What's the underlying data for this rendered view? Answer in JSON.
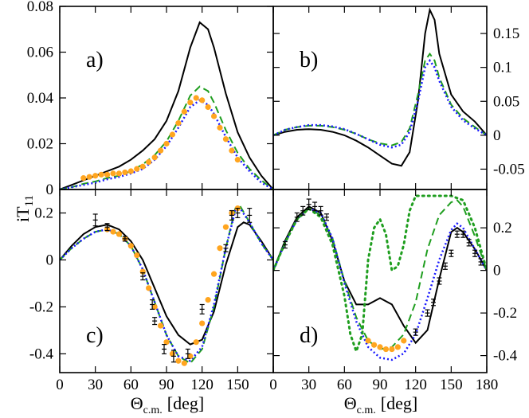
{
  "figure": {
    "ylabel_main": "iT",
    "ylabel_sub": "11",
    "xlabel_main": "Θ",
    "xlabel_sub": "c.m.",
    "xlabel_unit": "[deg]"
  },
  "colors": {
    "black": "#000000",
    "green": "#1f9e1f",
    "blue": "#1a1aff",
    "orange": "#ffa51f"
  },
  "chart_data": [
    {
      "type": "line",
      "label": "a)",
      "xlim": [
        0,
        180
      ],
      "ylim": [
        0,
        0.08
      ],
      "yticks": [
        "0",
        "0.02",
        "0.04",
        "0.06",
        "0.08"
      ],
      "series": [
        {
          "style": "black-solid",
          "x": [
            0,
            10,
            20,
            30,
            40,
            50,
            60,
            70,
            80,
            90,
            100,
            110,
            118,
            125,
            130,
            140,
            150,
            160,
            170,
            180
          ],
          "y": [
            0,
            0.002,
            0.004,
            0.006,
            0.008,
            0.01,
            0.013,
            0.017,
            0.022,
            0.03,
            0.043,
            0.062,
            0.073,
            0.07,
            0.062,
            0.042,
            0.025,
            0.014,
            0.006,
            0
          ]
        },
        {
          "style": "green-dash",
          "x": [
            0,
            10,
            20,
            30,
            40,
            50,
            60,
            70,
            80,
            90,
            100,
            110,
            118,
            125,
            130,
            140,
            150,
            160,
            170,
            180
          ],
          "y": [
            0,
            0.001,
            0.0025,
            0.0035,
            0.005,
            0.006,
            0.008,
            0.011,
            0.015,
            0.021,
            0.03,
            0.041,
            0.045,
            0.043,
            0.038,
            0.026,
            0.016,
            0.009,
            0.004,
            0
          ]
        },
        {
          "style": "blue-dots",
          "x": [
            0,
            10,
            20,
            30,
            40,
            50,
            60,
            70,
            80,
            90,
            100,
            110,
            118,
            125,
            130,
            140,
            150,
            160,
            170,
            180
          ],
          "y": [
            0,
            0.001,
            0.002,
            0.003,
            0.0045,
            0.0055,
            0.007,
            0.009,
            0.013,
            0.019,
            0.027,
            0.036,
            0.039,
            0.037,
            0.033,
            0.023,
            0.014,
            0.008,
            0.003,
            0
          ]
        },
        {
          "style": "orange-dots",
          "x": [
            20,
            25,
            30,
            35,
            40,
            45,
            50,
            55,
            60,
            65,
            70,
            75,
            80,
            85,
            90,
            95,
            100,
            105,
            110,
            115,
            120,
            125,
            130,
            135,
            140,
            145,
            150
          ],
          "y": [
            0.005,
            0.0055,
            0.006,
            0.0065,
            0.0065,
            0.007,
            0.007,
            0.0075,
            0.008,
            0.009,
            0.01,
            0.012,
            0.014,
            0.017,
            0.02,
            0.024,
            0.029,
            0.034,
            0.038,
            0.04,
            0.039,
            0.036,
            0.032,
            0.027,
            0.022,
            0.017,
            0.013
          ]
        }
      ]
    },
    {
      "type": "line",
      "label": "b)",
      "xlim": [
        0,
        180
      ],
      "ylim": [
        -0.08,
        0.19
      ],
      "yticks": [
        "-0.05",
        "0",
        "0.05",
        "0.1",
        "0.15"
      ],
      "yvalues": [
        -0.05,
        0,
        0.05,
        0.1,
        0.15
      ],
      "series": [
        {
          "style": "black-solid",
          "x": [
            0,
            10,
            20,
            30,
            40,
            50,
            60,
            70,
            80,
            90,
            100,
            108,
            115,
            122,
            128,
            132,
            136,
            140,
            150,
            160,
            170,
            180
          ],
          "y": [
            0,
            0.005,
            0.008,
            0.009,
            0.008,
            0.005,
            0,
            -0.008,
            -0.018,
            -0.03,
            -0.042,
            -0.045,
            -0.025,
            0.05,
            0.15,
            0.185,
            0.17,
            0.12,
            0.06,
            0.035,
            0.02,
            0
          ]
        },
        {
          "style": "green-dash",
          "x": [
            0,
            10,
            20,
            30,
            40,
            50,
            60,
            70,
            80,
            90,
            100,
            108,
            115,
            122,
            128,
            132,
            136,
            140,
            150,
            160,
            170,
            180
          ],
          "y": [
            0,
            0.008,
            0.012,
            0.014,
            0.014,
            0.012,
            0.008,
            0.002,
            -0.006,
            -0.012,
            -0.015,
            -0.01,
            0.01,
            0.06,
            0.11,
            0.12,
            0.11,
            0.085,
            0.045,
            0.025,
            0.012,
            0
          ]
        },
        {
          "style": "blue-dots",
          "x": [
            0,
            10,
            20,
            30,
            40,
            50,
            60,
            70,
            80,
            90,
            100,
            108,
            115,
            122,
            128,
            132,
            136,
            140,
            150,
            160,
            170,
            180
          ],
          "y": [
            0,
            0.008,
            0.012,
            0.015,
            0.015,
            0.013,
            0.009,
            0.002,
            -0.006,
            -0.014,
            -0.018,
            -0.014,
            0.005,
            0.05,
            0.1,
            0.11,
            0.1,
            0.08,
            0.042,
            0.022,
            0.01,
            0
          ]
        }
      ]
    },
    {
      "type": "line",
      "label": "c)",
      "xlim": [
        0,
        180
      ],
      "ylim": [
        -0.48,
        0.3
      ],
      "yticks": [
        "-0.4",
        "-0.2",
        "0",
        "0.2"
      ],
      "yvalues": [
        -0.4,
        -0.2,
        0,
        0.2
      ],
      "series": [
        {
          "style": "black-solid",
          "x": [
            0,
            10,
            20,
            30,
            40,
            50,
            60,
            70,
            80,
            90,
            100,
            110,
            120,
            130,
            140,
            150,
            155,
            160,
            170,
            180
          ],
          "y": [
            0,
            0.06,
            0.11,
            0.14,
            0.15,
            0.13,
            0.08,
            0.0,
            -0.12,
            -0.24,
            -0.32,
            -0.36,
            -0.34,
            -0.22,
            -0.02,
            0.14,
            0.16,
            0.15,
            0.08,
            0
          ]
        },
        {
          "style": "green-dash",
          "x": [
            0,
            10,
            20,
            30,
            40,
            50,
            60,
            70,
            80,
            90,
            100,
            110,
            120,
            130,
            140,
            148,
            152,
            160,
            170,
            180
          ],
          "y": [
            0,
            0.05,
            0.09,
            0.12,
            0.13,
            0.11,
            0.06,
            -0.04,
            -0.18,
            -0.32,
            -0.41,
            -0.44,
            -0.38,
            -0.2,
            0.05,
            0.22,
            0.23,
            0.16,
            0.07,
            0
          ]
        },
        {
          "style": "blue-dots",
          "x": [
            0,
            10,
            20,
            30,
            40,
            50,
            60,
            70,
            80,
            90,
            100,
            110,
            120,
            130,
            140,
            148,
            152,
            160,
            170,
            180
          ],
          "y": [
            0,
            0.05,
            0.09,
            0.12,
            0.13,
            0.11,
            0.06,
            -0.04,
            -0.18,
            -0.32,
            -0.41,
            -0.43,
            -0.37,
            -0.19,
            0.05,
            0.21,
            0.22,
            0.16,
            0.07,
            0
          ]
        },
        {
          "style": "orange-dots",
          "x": [
            40,
            45,
            50,
            55,
            60,
            65,
            70,
            75,
            80,
            85,
            90,
            95,
            100,
            105,
            110,
            115,
            120,
            125,
            130,
            135,
            140,
            145,
            150
          ],
          "y": [
            0.13,
            0.12,
            0.11,
            0.09,
            0.06,
            0.02,
            -0.05,
            -0.12,
            -0.2,
            -0.28,
            -0.35,
            -0.4,
            -0.43,
            -0.44,
            -0.41,
            -0.35,
            -0.27,
            -0.17,
            -0.06,
            0.05,
            0.14,
            0.2,
            0.22
          ]
        }
      ],
      "errorbars": [
        {
          "x": 30,
          "y": 0.17,
          "e": 0.025
        },
        {
          "x": 40,
          "y": 0.14,
          "e": 0.015
        },
        {
          "x": 55,
          "y": 0.09,
          "e": 0.01
        },
        {
          "x": 70,
          "y": -0.07,
          "e": 0.015
        },
        {
          "x": 78,
          "y": -0.19,
          "e": 0.02
        },
        {
          "x": 80,
          "y": -0.26,
          "e": 0.015
        },
        {
          "x": 88,
          "y": -0.38,
          "e": 0.02
        },
        {
          "x": 96,
          "y": -0.41,
          "e": 0.025
        },
        {
          "x": 108,
          "y": -0.4,
          "e": 0.02
        },
        {
          "x": 120,
          "y": -0.21,
          "e": 0.02
        },
        {
          "x": 140,
          "y": 0.05,
          "e": 0.015
        },
        {
          "x": 145,
          "y": 0.19,
          "e": 0.02
        },
        {
          "x": 150,
          "y": 0.2,
          "e": 0.02
        },
        {
          "x": 160,
          "y": 0.19,
          "e": 0.03
        }
      ]
    },
    {
      "type": "line",
      "label": "d)",
      "xlim": [
        0,
        180
      ],
      "ylim": [
        -0.48,
        0.38
      ],
      "yticks": [
        "-0.4",
        "-0.2",
        "0",
        "0.2"
      ],
      "yvalues": [
        -0.4,
        -0.2,
        0,
        0.2
      ],
      "series": [
        {
          "style": "black-solid",
          "x": [
            0,
            10,
            20,
            30,
            40,
            50,
            60,
            70,
            80,
            90,
            100,
            110,
            120,
            130,
            140,
            150,
            155,
            160,
            170,
            180
          ],
          "y": [
            0,
            0.14,
            0.25,
            0.3,
            0.27,
            0.14,
            -0.05,
            -0.16,
            -0.16,
            -0.13,
            -0.16,
            -0.26,
            -0.34,
            -0.28,
            -0.04,
            0.18,
            0.2,
            0.18,
            0.1,
            0
          ]
        },
        {
          "style": "green-dash",
          "x": [
            0,
            10,
            20,
            30,
            40,
            50,
            60,
            70,
            80,
            90,
            100,
            110,
            120,
            130,
            140,
            150,
            155,
            160,
            170,
            180
          ],
          "y": [
            0,
            0.13,
            0.24,
            0.29,
            0.26,
            0.15,
            -0.05,
            -0.22,
            -0.33,
            -0.37,
            -0.36,
            -0.3,
            -0.15,
            0.1,
            0.26,
            0.32,
            0.33,
            0.3,
            0.16,
            0
          ]
        },
        {
          "style": "blue-dots",
          "x": [
            0,
            10,
            20,
            30,
            40,
            50,
            60,
            70,
            80,
            90,
            100,
            110,
            120,
            130,
            140,
            150,
            155,
            160,
            170,
            180
          ],
          "y": [
            0,
            0.13,
            0.24,
            0.29,
            0.27,
            0.15,
            -0.06,
            -0.24,
            -0.36,
            -0.41,
            -0.42,
            -0.39,
            -0.3,
            -0.13,
            0.05,
            0.19,
            0.22,
            0.2,
            0.1,
            0
          ]
        },
        {
          "style": "green-dotted",
          "x": [
            0,
            10,
            20,
            30,
            40,
            50,
            60,
            65,
            70,
            75,
            80,
            85,
            90,
            95,
            100,
            105,
            110,
            115,
            120,
            125,
            130,
            140,
            150,
            160,
            170,
            180
          ],
          "y": [
            0,
            0.13,
            0.24,
            0.29,
            0.25,
            0.12,
            -0.12,
            -0.3,
            -0.38,
            -0.3,
            0.05,
            0.2,
            0.24,
            0.17,
            0.0,
            0.02,
            0.12,
            0.28,
            0.35,
            0.35,
            0.35,
            0.35,
            0.35,
            0.33,
            0.2,
            0
          ]
        },
        {
          "style": "orange-dots",
          "x": [
            80,
            85,
            90,
            95,
            100,
            105,
            110
          ],
          "y": [
            -0.33,
            -0.35,
            -0.36,
            -0.37,
            -0.37,
            -0.36,
            -0.33
          ]
        }
      ],
      "errorbars": [
        {
          "x": 10,
          "y": 0.12,
          "e": 0.015
        },
        {
          "x": 20,
          "y": 0.25,
          "e": 0.02
        },
        {
          "x": 25,
          "y": 0.28,
          "e": 0.02
        },
        {
          "x": 30,
          "y": 0.31,
          "e": 0.025
        },
        {
          "x": 35,
          "y": 0.3,
          "e": 0.02
        },
        {
          "x": 40,
          "y": 0.28,
          "e": 0.02
        },
        {
          "x": 45,
          "y": 0.25,
          "e": 0.015
        },
        {
          "x": 120,
          "y": -0.29,
          "e": 0.015
        },
        {
          "x": 130,
          "y": -0.2,
          "e": 0.015
        },
        {
          "x": 135,
          "y": -0.15,
          "e": 0.015
        },
        {
          "x": 140,
          "y": -0.05,
          "e": 0.015
        },
        {
          "x": 145,
          "y": 0.02,
          "e": 0.015
        },
        {
          "x": 150,
          "y": 0.08,
          "e": 0.015
        },
        {
          "x": 155,
          "y": 0.17,
          "e": 0.015
        },
        {
          "x": 160,
          "y": 0.17,
          "e": 0.015
        },
        {
          "x": 165,
          "y": 0.13,
          "e": 0.015
        },
        {
          "x": 170,
          "y": 0.08,
          "e": 0.015
        },
        {
          "x": 175,
          "y": 0.04,
          "e": 0.015
        }
      ]
    }
  ],
  "xticks": [
    "0",
    "30",
    "60",
    "90",
    "120",
    "150",
    "180"
  ],
  "xtick_values": [
    0,
    30,
    60,
    90,
    120,
    150,
    180
  ]
}
